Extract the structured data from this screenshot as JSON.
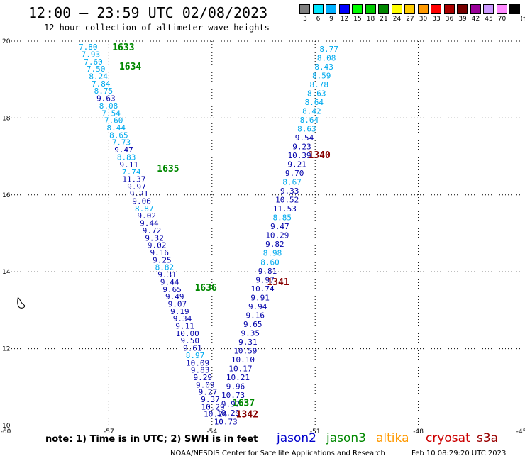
{
  "header": {
    "title": "12:00 — 23:59 UTC 02/08/2023",
    "subtitle": "12 hour collection of altimeter wave heights"
  },
  "colorbar": {
    "unit": "(ft)",
    "steps": [
      {
        "label": "3",
        "color": "#808080"
      },
      {
        "label": "6",
        "color": "#00e8ff"
      },
      {
        "label": "9",
        "color": "#00b0ff"
      },
      {
        "label": "12",
        "color": "#0000ff"
      },
      {
        "label": "15",
        "color": "#00ff00"
      },
      {
        "label": "18",
        "color": "#00cc00"
      },
      {
        "label": "21",
        "color": "#008800"
      },
      {
        "label": "24",
        "color": "#ffff00"
      },
      {
        "label": "27",
        "color": "#ffcc00"
      },
      {
        "label": "30",
        "color": "#ff9900"
      },
      {
        "label": "33",
        "color": "#ff0000"
      },
      {
        "label": "36",
        "color": "#aa0000"
      },
      {
        "label": "39",
        "color": "#770000"
      },
      {
        "label": "42",
        "color": "#990099"
      },
      {
        "label": "45",
        "color": "#cc99ff"
      },
      {
        "label": "70",
        "color": "#ff88ff"
      },
      {
        "label": "",
        "color": "#000000"
      }
    ]
  },
  "map": {
    "lon_min": -60,
    "lon_max": -45,
    "lat_min": 10,
    "lat_max": 20,
    "lon_ticks": [
      "-60",
      "-57",
      "-54",
      "-51",
      "-48",
      "-45"
    ],
    "lat_ticks": [
      "20",
      "18",
      "16",
      "14",
      "12",
      "10"
    ],
    "grid": true
  },
  "track_colors": {
    "light": "#00aaee",
    "dark": "#0000aa",
    "label_green": "#008800",
    "label_red": "#880000"
  },
  "tracks": [
    {
      "name": "jason3_west",
      "lon_start": -57.6,
      "lat_start": 19.85,
      "lon_end": -53.9,
      "lat_end": 10.3,
      "values": [
        {
          "v": "7.80",
          "c": "light"
        },
        {
          "v": "7.93",
          "c": "light"
        },
        {
          "v": "7.60",
          "c": "light"
        },
        {
          "v": "7.50",
          "c": "light"
        },
        {
          "v": "8.24",
          "c": "light"
        },
        {
          "v": "7.84",
          "c": "light"
        },
        {
          "v": "8.75",
          "c": "light"
        },
        {
          "v": "9.63",
          "c": "dark"
        },
        {
          "v": "8.08",
          "c": "light"
        },
        {
          "v": "7.54",
          "c": "light"
        },
        {
          "v": "7.60",
          "c": "light"
        },
        {
          "v": "8.44",
          "c": "light"
        },
        {
          "v": "8.65",
          "c": "light"
        },
        {
          "v": "7.73",
          "c": "light"
        },
        {
          "v": "9.47",
          "c": "dark"
        },
        {
          "v": "8.83",
          "c": "light"
        },
        {
          "v": "9.11",
          "c": "dark"
        },
        {
          "v": "7.74",
          "c": "light"
        },
        {
          "v": "11.37",
          "c": "dark"
        },
        {
          "v": "9.97",
          "c": "dark"
        },
        {
          "v": "9.21",
          "c": "dark"
        },
        {
          "v": "9.06",
          "c": "dark"
        },
        {
          "v": "8.87",
          "c": "light"
        },
        {
          "v": "9.02",
          "c": "dark"
        },
        {
          "v": "9.44",
          "c": "dark"
        },
        {
          "v": "9.72",
          "c": "dark"
        },
        {
          "v": "9.32",
          "c": "dark"
        },
        {
          "v": "9.02",
          "c": "dark"
        },
        {
          "v": "9.16",
          "c": "dark"
        },
        {
          "v": "9.25",
          "c": "dark"
        },
        {
          "v": "8.82",
          "c": "light"
        },
        {
          "v": "9.31",
          "c": "dark"
        },
        {
          "v": "9.44",
          "c": "dark"
        },
        {
          "v": "9.65",
          "c": "dark"
        },
        {
          "v": "9.49",
          "c": "dark"
        },
        {
          "v": "9.07",
          "c": "dark"
        },
        {
          "v": "9.19",
          "c": "dark"
        },
        {
          "v": "9.34",
          "c": "dark"
        },
        {
          "v": "9.11",
          "c": "dark"
        },
        {
          "v": "10.00",
          "c": "dark"
        },
        {
          "v": "9.50",
          "c": "dark"
        },
        {
          "v": "9.61",
          "c": "dark"
        },
        {
          "v": "8.97",
          "c": "light"
        },
        {
          "v": "10.09",
          "c": "dark"
        },
        {
          "v": "9.83",
          "c": "dark"
        },
        {
          "v": "9.29",
          "c": "dark"
        },
        {
          "v": "9.09",
          "c": "dark"
        },
        {
          "v": "9.27",
          "c": "dark"
        },
        {
          "v": "9.37",
          "c": "dark"
        },
        {
          "v": "10.29",
          "c": "dark"
        },
        {
          "v": "10.24",
          "c": "dark"
        }
      ]
    },
    {
      "name": "jason3_east",
      "lon_start": -50.6,
      "lat_start": 19.8,
      "lon_end": -53.6,
      "lat_end": 10.1,
      "values": [
        {
          "v": "8.77",
          "c": "light"
        },
        {
          "v": "8.08",
          "c": "light"
        },
        {
          "v": "8.43",
          "c": "light"
        },
        {
          "v": "8.59",
          "c": "light"
        },
        {
          "v": "8.78",
          "c": "light"
        },
        {
          "v": "8.63",
          "c": "light"
        },
        {
          "v": "8.64",
          "c": "light"
        },
        {
          "v": "8.42",
          "c": "light"
        },
        {
          "v": "8.64",
          "c": "light"
        },
        {
          "v": "8.63",
          "c": "light"
        },
        {
          "v": "9.54",
          "c": "dark"
        },
        {
          "v": "9.23",
          "c": "dark"
        },
        {
          "v": "10.39",
          "c": "dark"
        },
        {
          "v": "9.21",
          "c": "dark"
        },
        {
          "v": "9.70",
          "c": "dark"
        },
        {
          "v": "8.67",
          "c": "light"
        },
        {
          "v": "9.33",
          "c": "dark"
        },
        {
          "v": "10.52",
          "c": "dark"
        },
        {
          "v": "11.53",
          "c": "dark"
        },
        {
          "v": "8.85",
          "c": "light"
        },
        {
          "v": "9.47",
          "c": "dark"
        },
        {
          "v": "10.29",
          "c": "dark"
        },
        {
          "v": "9.82",
          "c": "dark"
        },
        {
          "v": "8.98",
          "c": "light"
        },
        {
          "v": "8.60",
          "c": "light"
        },
        {
          "v": "9.81",
          "c": "dark"
        },
        {
          "v": "9.97",
          "c": "dark"
        },
        {
          "v": "10.74",
          "c": "dark"
        },
        {
          "v": "9.91",
          "c": "dark"
        },
        {
          "v": "9.94",
          "c": "dark"
        },
        {
          "v": "9.16",
          "c": "dark"
        },
        {
          "v": "9.65",
          "c": "dark"
        },
        {
          "v": "9.35",
          "c": "dark"
        },
        {
          "v": "9.31",
          "c": "dark"
        },
        {
          "v": "10.59",
          "c": "dark"
        },
        {
          "v": "10.10",
          "c": "dark"
        },
        {
          "v": "10.17",
          "c": "dark"
        },
        {
          "v": "10.21",
          "c": "dark"
        },
        {
          "v": "9.96",
          "c": "dark"
        },
        {
          "v": "10.73",
          "c": "dark"
        },
        {
          "v": "9.97",
          "c": "dark"
        },
        {
          "v": "10.29",
          "c": "dark"
        },
        {
          "v": "10.73",
          "c": "dark"
        }
      ]
    }
  ],
  "time_labels": [
    {
      "text": "1633",
      "lon": -56.9,
      "lat": 19.85,
      "c": "label_green"
    },
    {
      "text": "1634",
      "lon": -56.7,
      "lat": 19.35,
      "c": "label_green"
    },
    {
      "text": "1635",
      "lon": -55.6,
      "lat": 16.7,
      "c": "label_green"
    },
    {
      "text": "1636",
      "lon": -54.5,
      "lat": 13.6,
      "c": "label_green"
    },
    {
      "text": "1637",
      "lon": -53.4,
      "lat": 10.6,
      "c": "label_green"
    },
    {
      "text": "1340",
      "lon": -51.2,
      "lat": 17.05,
      "c": "label_red"
    },
    {
      "text": "1341",
      "lon": -52.4,
      "lat": 13.75,
      "c": "label_red"
    },
    {
      "text": "1342",
      "lon": -53.3,
      "lat": 10.3,
      "c": "label_red"
    }
  ],
  "land": {
    "name": "island",
    "lon": -59.6,
    "lat": 13.2
  },
  "footnote": "note: 1) Time is in UTC; 2) SWH is in feet",
  "legend": [
    {
      "label": "jason2",
      "color": "#0000cc"
    },
    {
      "label": "jason3",
      "color": "#008800"
    },
    {
      "label": "altika",
      "color": "#ff9900"
    },
    {
      "label": "cryosat",
      "color": "#cc0000"
    },
    {
      "label": "s3a",
      "color": "#990000"
    }
  ],
  "credit": "NOAA/NESDIS Center for Satellite Applications and Research",
  "timestamp": "Feb 10 08:29:20 UTC 2023"
}
